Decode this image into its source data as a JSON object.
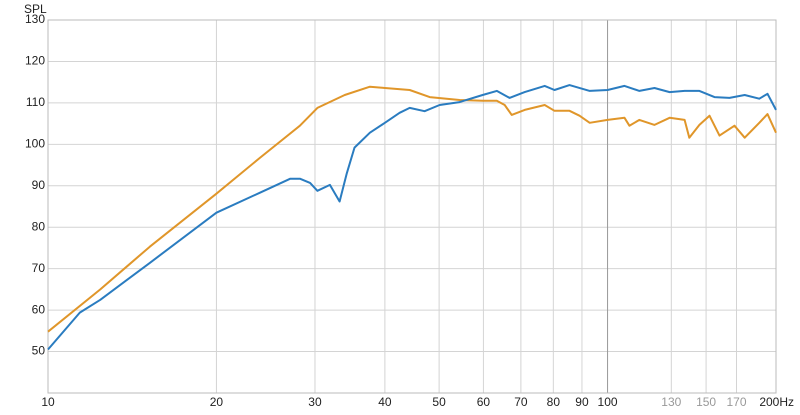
{
  "chart_data": {
    "type": "line",
    "y_label": "SPL",
    "xscale": "log",
    "xlim": [
      10,
      200
    ],
    "ylim": [
      40,
      130
    ],
    "xticks": [
      10,
      20,
      30,
      40,
      50,
      60,
      70,
      80,
      90,
      100,
      {
        "value": 200,
        "label": "200Hz"
      }
    ],
    "xticks_secondary": [
      130,
      150,
      170
    ],
    "secondary_tick_color": "#999999",
    "emphasized_xtick": 100,
    "yticks": [
      50,
      60,
      70,
      80,
      90,
      100,
      110,
      120,
      130
    ],
    "grid": true,
    "series": [
      {
        "color": "#e0962a",
        "x": [
          10,
          12.4,
          15.2,
          20,
          23.9,
          28.2,
          30.3,
          33.9,
          37.6,
          40,
          44.3,
          48.1,
          54.4,
          59.8,
          63.4,
          65.5,
          67.4,
          71.1,
          77.2,
          80.4,
          85.5,
          89.1,
          92.9,
          100,
          107.2,
          109.4,
          114,
          121.3,
          129.1,
          137.3,
          140,
          145.9,
          152.1,
          158.5,
          168.6,
          175.8,
          186.7,
          193.1,
          200
        ],
        "values": [
          54.8,
          65,
          75.3,
          88.1,
          96.7,
          104.5,
          108.8,
          111.9,
          113.9,
          113.6,
          113.1,
          111.4,
          110.7,
          110.5,
          110.5,
          109.5,
          107.1,
          108.3,
          109.5,
          108.1,
          108.1,
          106.9,
          105.2,
          105.9,
          106.4,
          104.5,
          105.9,
          104.7,
          106.4,
          105.9,
          101.6,
          104.7,
          106.9,
          102.1,
          104.5,
          101.6,
          105.2,
          107.3,
          102.8
        ]
      },
      {
        "color": "#2a7cc0",
        "x": [
          10,
          11.4,
          12.4,
          15.2,
          20,
          23.9,
          27.1,
          28.2,
          29.4,
          30.3,
          31.9,
          33.2,
          34.2,
          35.3,
          37.6,
          40,
          42.5,
          44.3,
          47.1,
          50.1,
          54.4,
          59.8,
          63.4,
          66.8,
          71.1,
          77.2,
          80.4,
          85.5,
          92.9,
          100,
          107.2,
          114,
          121.3,
          129.1,
          137.3,
          145.9,
          155.3,
          165.2,
          175.8,
          186.7,
          193.1,
          200
        ],
        "values": [
          50.5,
          59.4,
          62.5,
          71.4,
          83.5,
          88.3,
          91.7,
          91.7,
          90.7,
          88.8,
          90.2,
          86.2,
          93,
          99.2,
          102.8,
          105.2,
          107.6,
          108.8,
          108,
          109.5,
          110.2,
          111.9,
          112.9,
          111.2,
          112.6,
          114.1,
          113.1,
          114.3,
          112.9,
          113.1,
          114.1,
          112.9,
          113.6,
          112.6,
          112.9,
          112.9,
          111.4,
          111.2,
          111.9,
          111,
          112.2,
          108.3
        ]
      }
    ]
  }
}
